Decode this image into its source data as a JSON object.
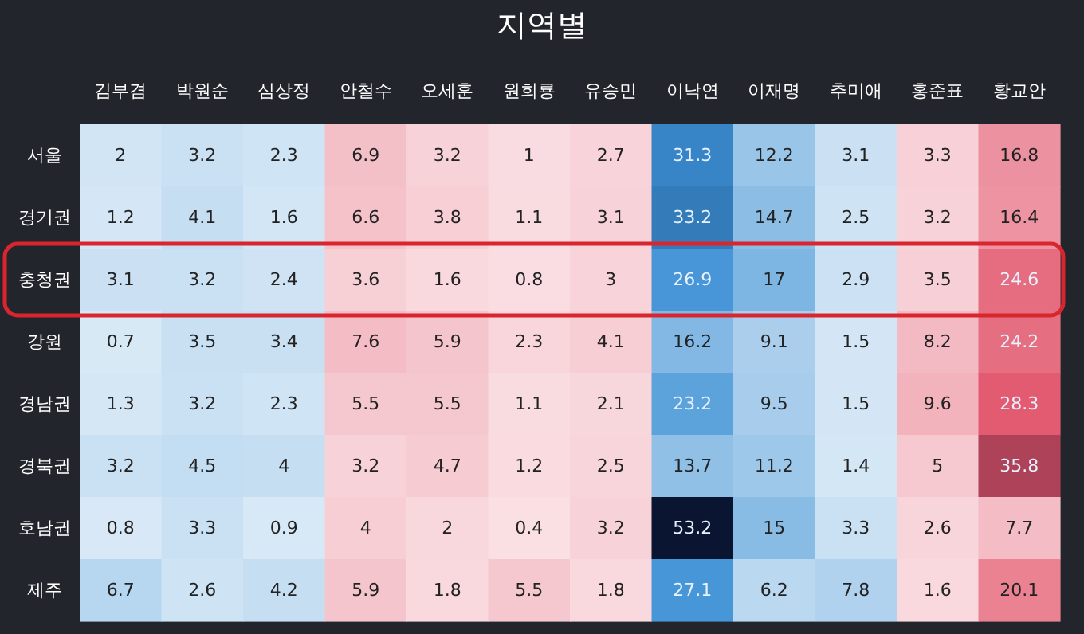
{
  "chart_data": {
    "type": "heatmap",
    "title": "지역별",
    "categories": [
      "김부겸",
      "박원순",
      "심상정",
      "안철수",
      "오세훈",
      "원희룡",
      "유승민",
      "이낙연",
      "이재명",
      "추미애",
      "홍준표",
      "황교안"
    ],
    "y_categories": [
      "서울",
      "경기권",
      "충청권",
      "강원",
      "경남권",
      "경북권",
      "호남권",
      "제주"
    ],
    "colors": [
      "#3b8fd4",
      "#3b8fd4",
      "#3b8fd4",
      "#e2566c",
      "#e2566c",
      "#e2566c",
      "#e2566c",
      "#3b8fd4",
      "#3b8fd4",
      "#3b8fd4",
      "#e2566c",
      "#e2566c"
    ],
    "cells": [
      [
        2,
        3.2,
        2.3,
        6.9,
        3.2,
        1,
        2.7,
        31.3,
        12.2,
        3.1,
        3.3,
        16.8
      ],
      [
        1.2,
        4.1,
        1.6,
        6.6,
        3.8,
        1.1,
        3.1,
        33.2,
        14.7,
        2.5,
        3.2,
        16.4
      ],
      [
        3.1,
        3.2,
        2.4,
        3.6,
        1.6,
        0.8,
        3,
        26.9,
        17,
        2.9,
        3.5,
        24.6
      ],
      [
        0.7,
        3.5,
        3.4,
        7.6,
        5.9,
        2.3,
        4.1,
        16.2,
        9.1,
        1.5,
        8.2,
        24.2
      ],
      [
        1.3,
        3.2,
        2.3,
        5.5,
        5.5,
        1.1,
        2.1,
        23.2,
        9.5,
        1.5,
        9.6,
        28.3
      ],
      [
        3.2,
        4.5,
        4,
        3.2,
        4.7,
        1.2,
        2.5,
        13.7,
        11.2,
        1.4,
        5,
        35.8
      ],
      [
        0.8,
        3.3,
        0.9,
        4,
        2,
        0.4,
        3.2,
        53.2,
        15,
        3.3,
        2.6,
        7.7
      ],
      [
        6.7,
        2.6,
        4.2,
        5.9,
        1.8,
        5.5,
        1.8,
        27.1,
        6.2,
        7.8,
        1.6,
        20.1
      ]
    ],
    "data_labels": true
  }
}
